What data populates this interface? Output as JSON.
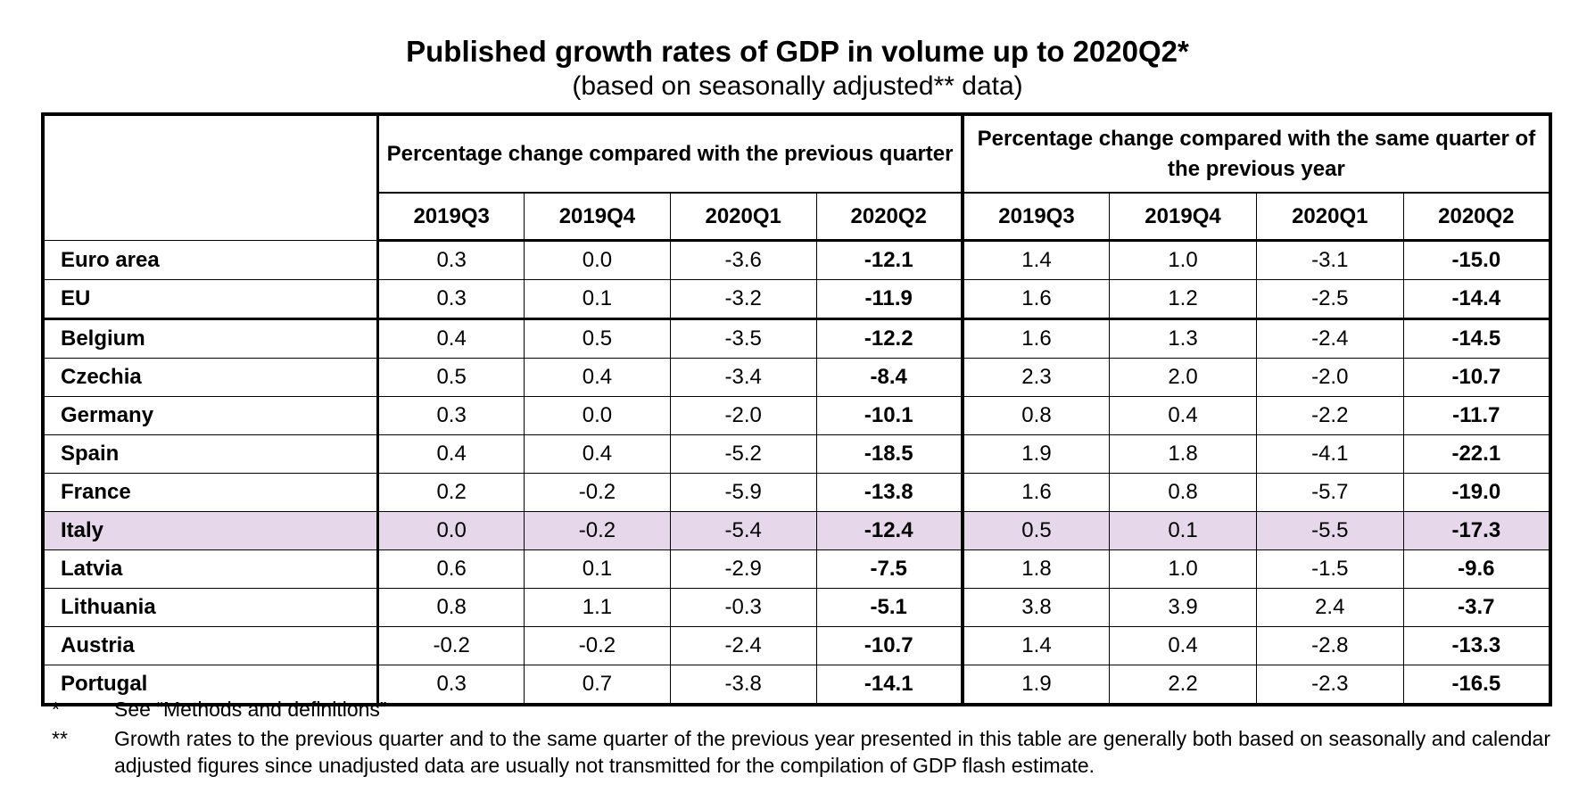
{
  "title": "Published growth rates of GDP in volume up to 2020Q2*",
  "subtitle": "(based on seasonally adjusted** data)",
  "table": {
    "group_headers": [
      "Percentage change compared with the previous quarter",
      "Percentage change compared with the same quarter of the previous year"
    ],
    "quarters": [
      "2019Q3",
      "2019Q4",
      "2020Q1",
      "2020Q2",
      "2019Q3",
      "2019Q4",
      "2020Q1",
      "2020Q2"
    ],
    "rows": [
      {
        "country": "Euro area",
        "values": [
          "0.3",
          "0.0",
          "-3.6",
          "-12.1",
          "1.4",
          "1.0",
          "-3.1",
          "-15.0"
        ]
      },
      {
        "country": "EU",
        "values": [
          "0.3",
          "0.1",
          "-3.2",
          "-11.9",
          "1.6",
          "1.2",
          "-2.5",
          "-14.4"
        ]
      },
      {
        "country": "Belgium",
        "values": [
          "0.4",
          "0.5",
          "-3.5",
          "-12.2",
          "1.6",
          "1.3",
          "-2.4",
          "-14.5"
        ]
      },
      {
        "country": "Czechia",
        "values": [
          "0.5",
          "0.4",
          "-3.4",
          "-8.4",
          "2.3",
          "2.0",
          "-2.0",
          "-10.7"
        ]
      },
      {
        "country": "Germany",
        "values": [
          "0.3",
          "0.0",
          "-2.0",
          "-10.1",
          "0.8",
          "0.4",
          "-2.2",
          "-11.7"
        ]
      },
      {
        "country": "Spain",
        "values": [
          "0.4",
          "0.4",
          "-5.2",
          "-18.5",
          "1.9",
          "1.8",
          "-4.1",
          "-22.1"
        ]
      },
      {
        "country": "France",
        "values": [
          "0.2",
          "-0.2",
          "-5.9",
          "-13.8",
          "1.6",
          "0.8",
          "-5.7",
          "-19.0"
        ]
      },
      {
        "country": "Italy",
        "values": [
          "0.0",
          "-0.2",
          "-5.4",
          "-12.4",
          "0.5",
          "0.1",
          "-5.5",
          "-17.3"
        ],
        "highlight": true
      },
      {
        "country": "Latvia",
        "values": [
          "0.6",
          "0.1",
          "-2.9",
          "-7.5",
          "1.8",
          "1.0",
          "-1.5",
          "-9.6"
        ]
      },
      {
        "country": "Lithuania",
        "values": [
          "0.8",
          "1.1",
          "-0.3",
          "-5.1",
          "3.8",
          "3.9",
          "2.4",
          "-3.7"
        ]
      },
      {
        "country": "Austria",
        "values": [
          "-0.2",
          "-0.2",
          "-2.4",
          "-10.7",
          "1.4",
          "0.4",
          "-2.8",
          "-13.3"
        ]
      },
      {
        "country": "Portugal",
        "values": [
          "0.3",
          "0.7",
          "-3.8",
          "-14.1",
          "1.9",
          "2.2",
          "-2.3",
          "-16.5"
        ]
      }
    ]
  },
  "footnotes": [
    {
      "marker": "*",
      "text": "See “Methods and definitions”"
    },
    {
      "marker": "**",
      "text": "Growth rates to the previous quarter and to the same quarter of the previous year presented in this table are generally both based on seasonally and calendar adjusted figures since unadjusted data are usually not transmitted for the compilation of GDP flash estimate."
    }
  ],
  "colors": {
    "highlight_row": "#e6d7ea"
  }
}
